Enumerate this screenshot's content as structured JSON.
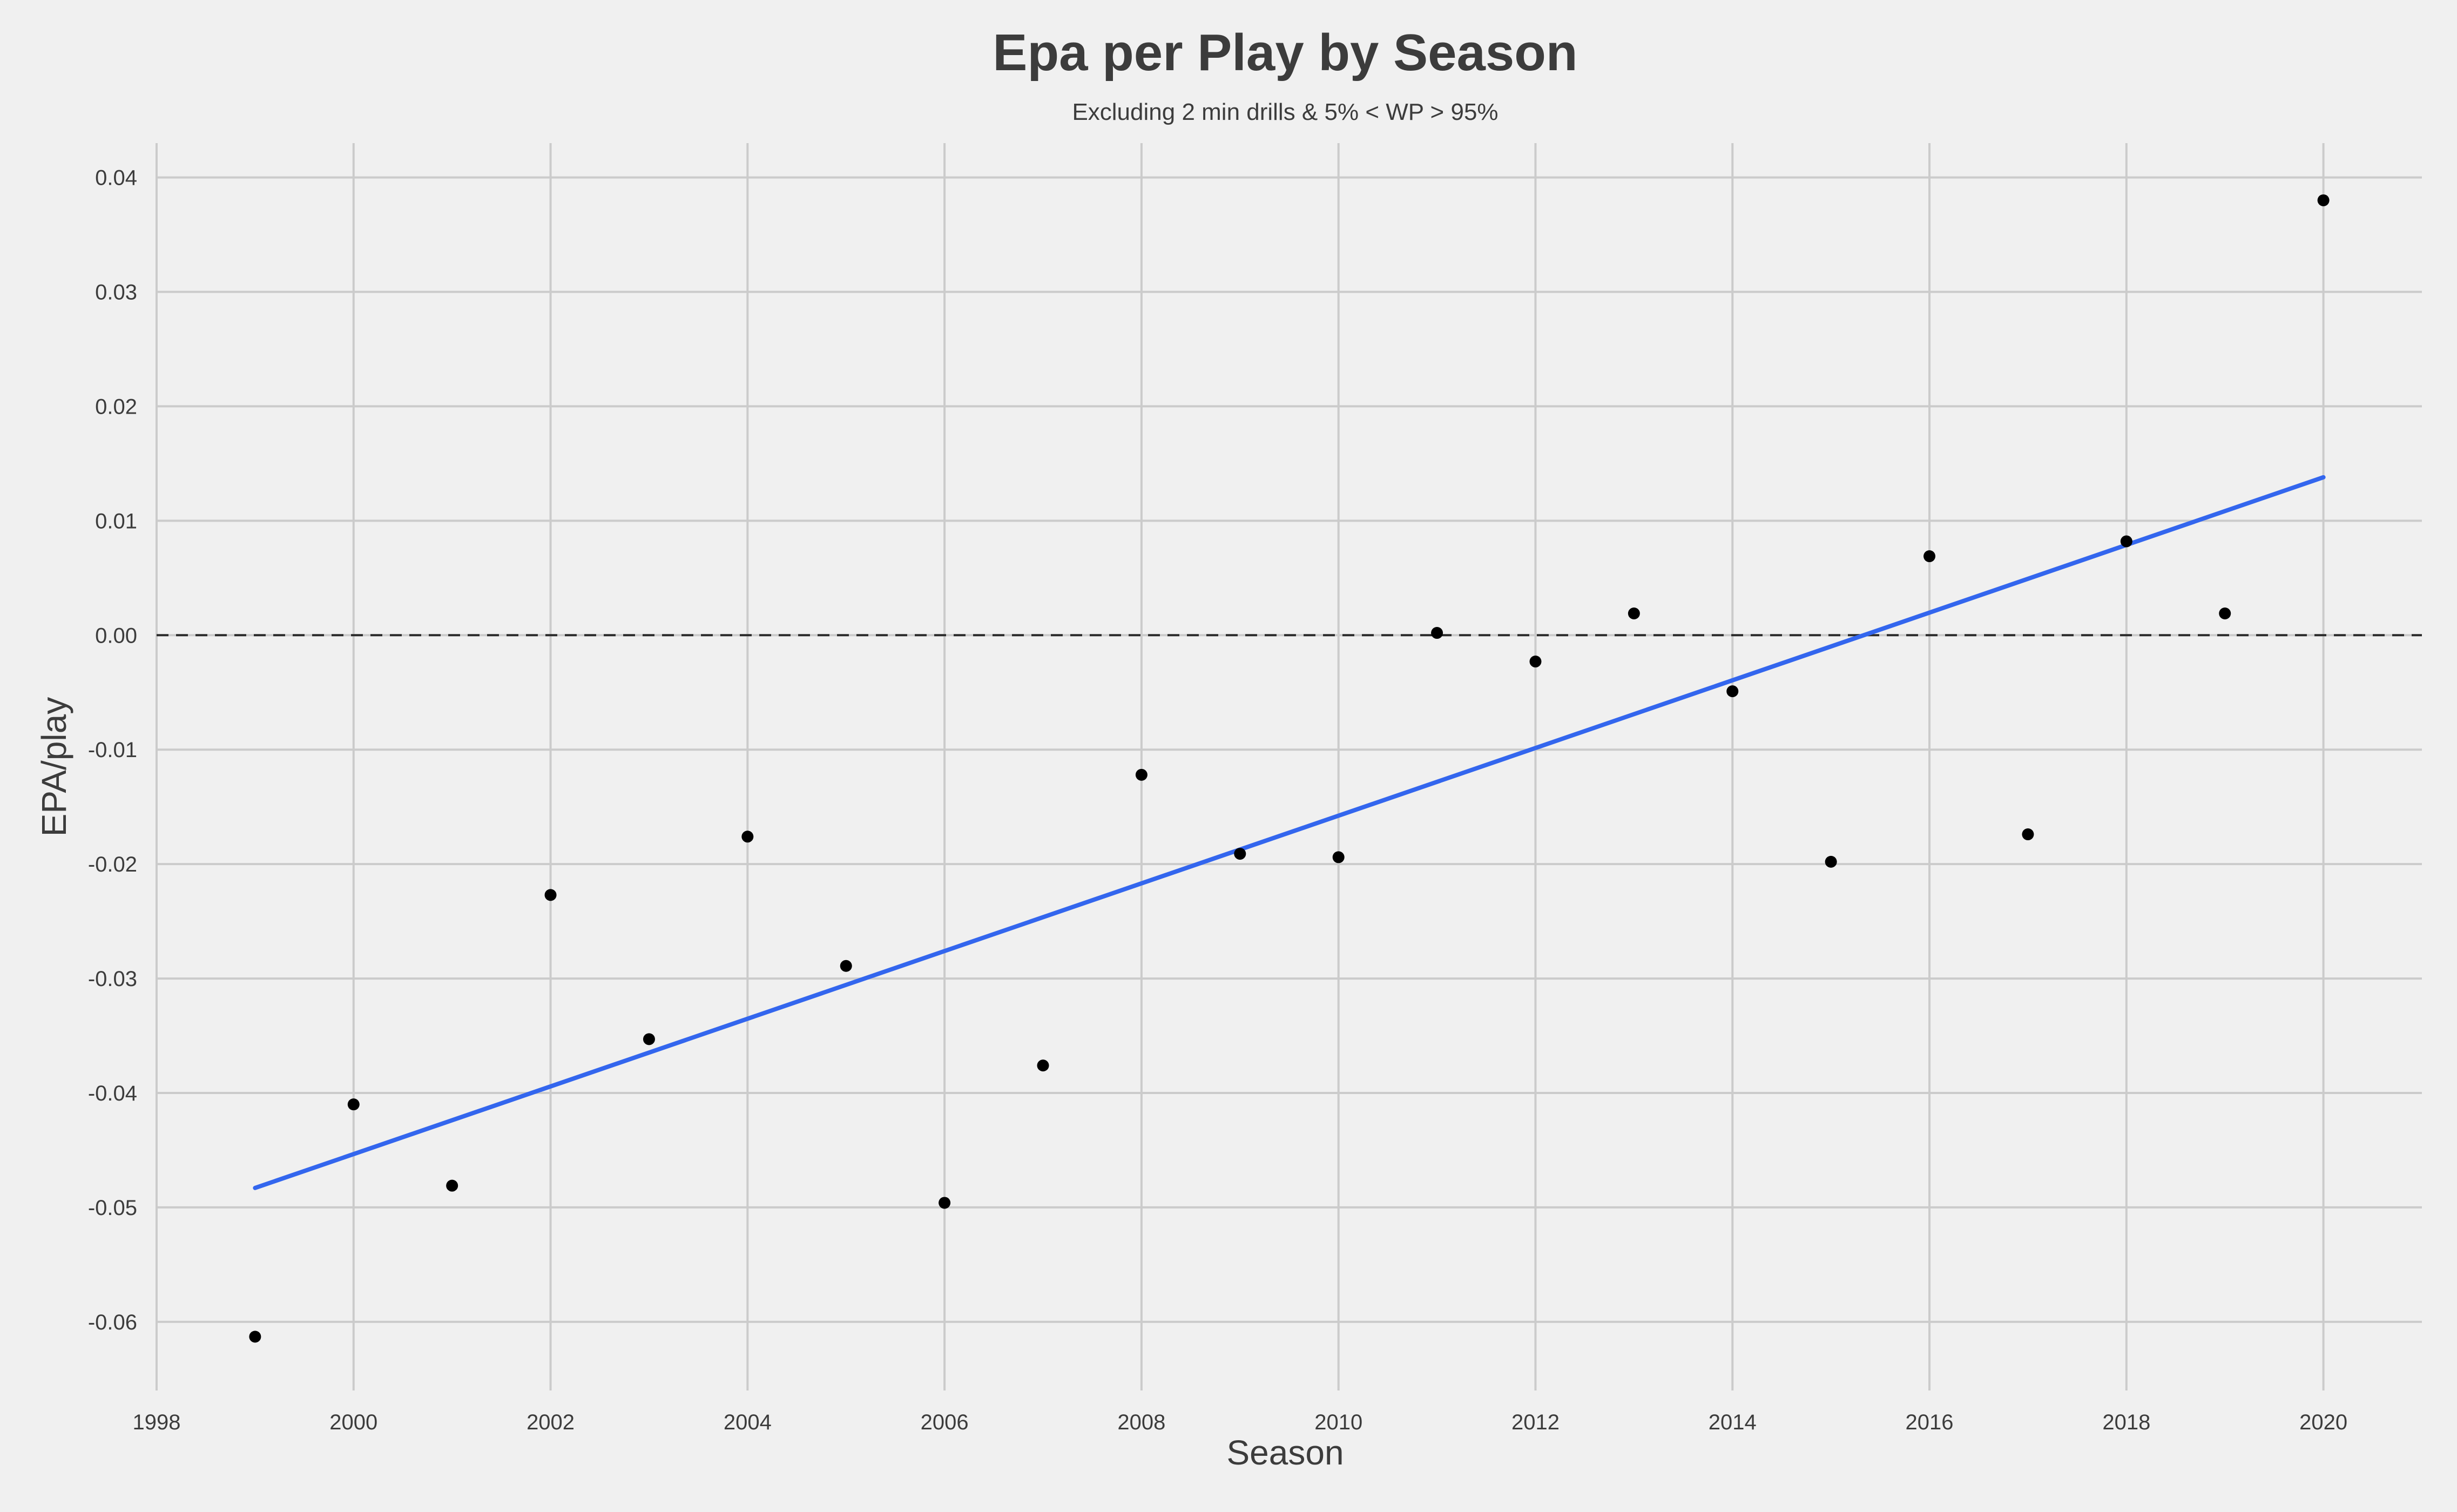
{
  "chart_data": {
    "type": "scatter",
    "title": "Epa per Play by Season",
    "subtitle": "Excluding 2 min drills & 5% < WP > 95%",
    "xlabel": "Season",
    "ylabel": "EPA/play",
    "xlim": [
      1998,
      2021
    ],
    "ylim": [
      -0.066,
      0.043
    ],
    "x_ticks": [
      1998,
      2000,
      2002,
      2004,
      2006,
      2008,
      2010,
      2012,
      2014,
      2016,
      2018,
      2020
    ],
    "x_tick_labels": [
      "1998",
      "2000",
      "2002",
      "2004",
      "2006",
      "2008",
      "2010",
      "2012",
      "2014",
      "2016",
      "2018",
      "2020"
    ],
    "y_ticks": [
      -0.06,
      -0.05,
      -0.04,
      -0.03,
      -0.02,
      -0.01,
      0.0,
      0.01,
      0.02,
      0.03,
      0.04
    ],
    "y_tick_labels": [
      "-0.06",
      "-0.05",
      "-0.04",
      "-0.03",
      "-0.02",
      "-0.01",
      "0.00",
      "0.01",
      "0.02",
      "0.03",
      "0.04"
    ],
    "grid": true,
    "points": {
      "x": [
        1999,
        2000,
        2001,
        2002,
        2003,
        2004,
        2005,
        2006,
        2007,
        2008,
        2009,
        2010,
        2011,
        2012,
        2013,
        2014,
        2015,
        2016,
        2017,
        2018,
        2019,
        2020
      ],
      "y": [
        -0.0613,
        -0.041,
        -0.0481,
        -0.0227,
        -0.0353,
        -0.0176,
        -0.0289,
        -0.0496,
        -0.0376,
        -0.0122,
        -0.0191,
        -0.0194,
        0.0002,
        -0.0023,
        0.0019,
        -0.0049,
        -0.0198,
        0.0069,
        -0.0174,
        0.0082,
        0.0019,
        0.038
      ]
    },
    "trend_line": {
      "x": [
        1999,
        2020
      ],
      "y": [
        -0.0483,
        0.0138
      ]
    },
    "reference_line": {
      "y": 0.0,
      "style": "dashed"
    },
    "colors": {
      "background": "#f0f0f0",
      "grid": "#cbcbcb",
      "points": "#000000",
      "trend": "#3366ee",
      "reference": "#2a2a2a",
      "text": "#3c3c3c"
    }
  }
}
